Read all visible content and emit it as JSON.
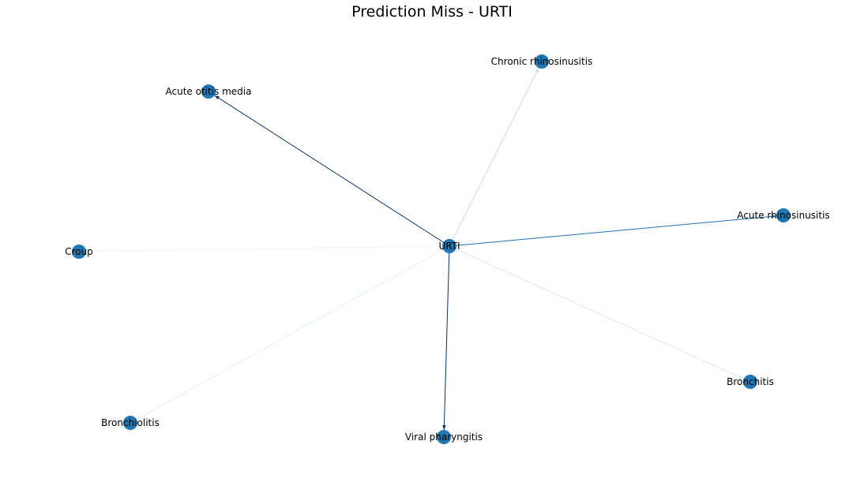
{
  "graph": {
    "title": "Prediction Miss - URTI",
    "node_color": "#1f77b4",
    "nodes": [
      {
        "id": "urti",
        "label": "URTI"
      },
      {
        "id": "chronic-rhinosinusitis",
        "label": "Chronic rhinosinusitis"
      },
      {
        "id": "acute-otitis-media",
        "label": "Acute otitis media"
      },
      {
        "id": "acute-rhinosinusitis",
        "label": "Acute rhinosinusitis"
      },
      {
        "id": "croup",
        "label": "Croup"
      },
      {
        "id": "bronchitis",
        "label": "Bronchitis"
      },
      {
        "id": "bronchiolitis",
        "label": "Bronchiolitis"
      },
      {
        "id": "viral-pharyngitis",
        "label": "Viral pharyngitis"
      }
    ],
    "edges": [
      {
        "source": "urti",
        "target": "acute-otitis-media",
        "color": "#08306b"
      },
      {
        "source": "urti",
        "target": "viral-pharyngitis",
        "color": "#08306b"
      },
      {
        "source": "urti",
        "target": "acute-rhinosinusitis",
        "color": "#2171b5"
      },
      {
        "source": "urti",
        "target": "chronic-rhinosinusitis",
        "color": "#c6dbef"
      },
      {
        "source": "urti",
        "target": "bronchitis",
        "color": "#dfe7f0"
      },
      {
        "source": "urti",
        "target": "bronchiolitis",
        "color": "#e7edf4"
      },
      {
        "source": "urti",
        "target": "croup",
        "color": "#f1f4f8"
      }
    ]
  }
}
